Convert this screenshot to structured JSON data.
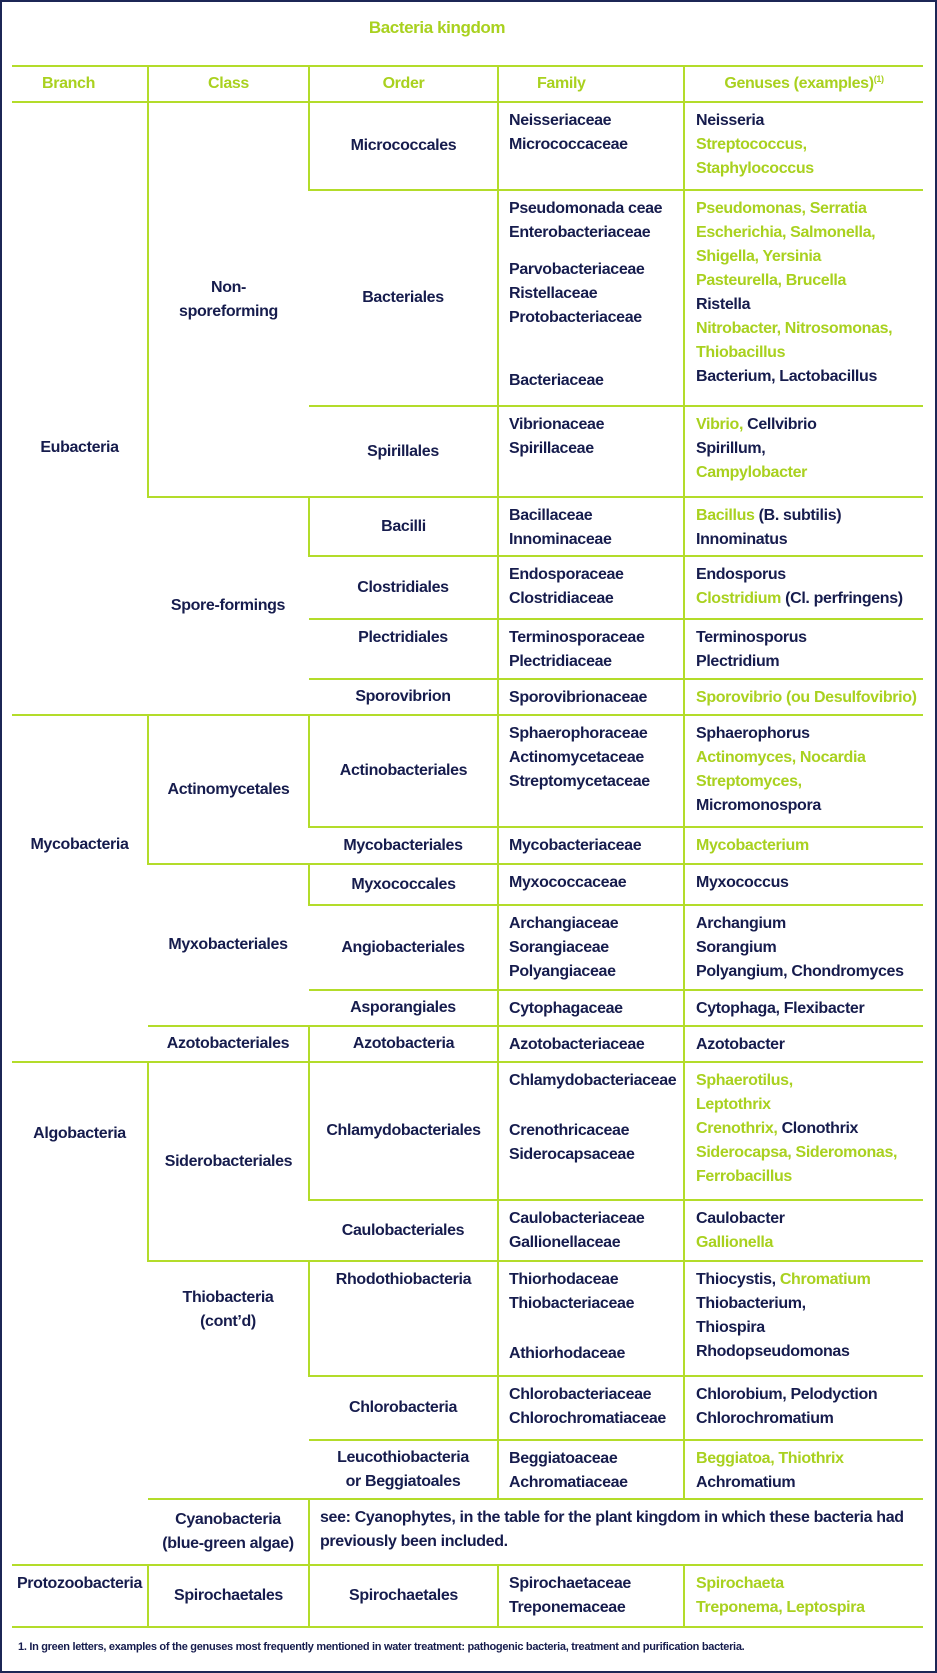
{
  "title": "Bacteria kingdom",
  "colors": {
    "text": "#161c4d",
    "green": "#a9d11f",
    "rule": "#b3dc2a",
    "frame": "#1c2656"
  },
  "headers": {
    "branch": "Branch",
    "class": "Class",
    "order": "Order",
    "family": "Family",
    "genus": "Genuses (examples)",
    "genus_sup": "(1)"
  },
  "branches": [
    {
      "label": "Eubacteria",
      "classes": [
        {
          "label": "Non-\nsporeforming",
          "orders": [
            {
              "order": "Micrococcales",
              "family": [
                "Neisseriaceae",
                "Micrococcaceae"
              ],
              "genus": [
                [
                  {
                    "text": "Neisseria",
                    "green": false
                  }
                ],
                [
                  {
                    "text": "Streptococcus,",
                    "green": true
                  }
                ],
                [
                  {
                    "text": "Staphylococcus",
                    "green": true
                  }
                ]
              ]
            },
            {
              "order": "Bacteriales",
              "family": [
                "Pseudomonada ceae",
                "Enterobacteriaceae",
                "",
                "Parvobacteriaceae",
                "Ristellaceae",
                "Protobacteriaceae",
                "",
                "",
                "",
                "Bacteriaceae"
              ],
              "genus": [
                [
                  {
                    "text": "Pseudomonas, Serratia",
                    "green": true
                  }
                ],
                [
                  {
                    "text": "Escherichia, Salmonella,",
                    "green": true
                  }
                ],
                [
                  {
                    "text": "Shigella, Yersinia",
                    "green": true
                  }
                ],
                [
                  {
                    "text": "Pasteurella, Brucella",
                    "green": true
                  }
                ],
                [
                  {
                    "text": "Ristella",
                    "green": false
                  }
                ],
                [
                  {
                    "text": "Nitrobacter, Nitrosomonas,",
                    "green": true
                  }
                ],
                [
                  {
                    "text": "Thiobacillus",
                    "green": true
                  }
                ],
                [
                  {
                    "text": "Bacterium, Lactobacillus",
                    "green": false
                  }
                ]
              ]
            },
            {
              "order": "Spirillales",
              "family": [
                "Vibrionaceae",
                "Spirillaceae"
              ],
              "genus": [
                [
                  {
                    "text": "Vibrio,",
                    "green": true
                  },
                  {
                    "text": " Cellvibrio",
                    "green": false
                  }
                ],
                [
                  {
                    "text": "Spirillum,",
                    "green": false
                  }
                ],
                [
                  {
                    "text": "Campylobacter",
                    "green": true
                  }
                ]
              ]
            }
          ]
        },
        {
          "label": "Spore-formings",
          "orders": [
            {
              "order": "Bacilli",
              "family": [
                "Bacillaceae",
                "Innominaceae"
              ],
              "genus": [
                [
                  {
                    "text": "Bacillus",
                    "green": true
                  },
                  {
                    "text": " (B. subtilis)",
                    "green": false
                  }
                ],
                [
                  {
                    "text": "Innominatus",
                    "green": false
                  }
                ]
              ]
            },
            {
              "order": "Clostridiales",
              "family": [
                "Endosporaceae",
                "Clostridiaceae"
              ],
              "genus": [
                [
                  {
                    "text": "Endosporus",
                    "green": false
                  }
                ],
                [
                  {
                    "text": "Clostridium",
                    "green": true
                  },
                  {
                    "text": " (Cl. perfringens)",
                    "green": false
                  }
                ]
              ]
            },
            {
              "order": "Plectridiales",
              "family": [
                "Terminosporaceae",
                "Plectridiaceae"
              ],
              "genus": [
                [
                  {
                    "text": "Terminosporus",
                    "green": false
                  }
                ],
                [
                  {
                    "text": "Plectridium",
                    "green": false
                  }
                ]
              ]
            },
            {
              "order": "Sporovibrion",
              "family": [
                "Sporovibrionaceae"
              ],
              "genus": [
                [
                  {
                    "text": "Sporovibrio (ou Desulfovibrio)",
                    "green": true
                  }
                ]
              ]
            }
          ]
        }
      ]
    },
    {
      "label": "Mycobacteria",
      "classes": [
        {
          "label": "Actinomycetales",
          "orders": [
            {
              "order": "Actinobacteriales",
              "family": [
                "Sphaerophoraceae",
                "Actinomycetaceae",
                "Streptomycetaceae"
              ],
              "genus": [
                [
                  {
                    "text": "Sphaerophorus",
                    "green": false
                  }
                ],
                [
                  {
                    "text": "Actinomyces, Nocardia",
                    "green": true
                  }
                ],
                [
                  {
                    "text": "Streptomyces,",
                    "green": true
                  }
                ],
                [
                  {
                    "text": "Micromonospora",
                    "green": false
                  }
                ]
              ]
            },
            {
              "order": "Mycobacteriales",
              "family": [
                "Mycobacteriaceae"
              ],
              "genus": [
                [
                  {
                    "text": "Mycobacterium",
                    "green": true
                  }
                ]
              ]
            }
          ]
        },
        {
          "label": "Myxobacteriales",
          "orders": [
            {
              "order": "Myxococcales",
              "family": [
                "Myxococcaceae"
              ],
              "genus": [
                [
                  {
                    "text": "Myxococcus",
                    "green": false
                  }
                ]
              ]
            },
            {
              "order": "Angiobacteriales",
              "family": [
                "Archangiaceae",
                "Sorangiaceae",
                "Polyangiaceae"
              ],
              "genus": [
                [
                  {
                    "text": "Archangium",
                    "green": false
                  }
                ],
                [
                  {
                    "text": "Sorangium",
                    "green": false
                  }
                ],
                [
                  {
                    "text": "Polyangium, Chondromyces",
                    "green": false
                  }
                ]
              ]
            },
            {
              "order": "Asporangiales",
              "family": [
                "Cytophagaceae"
              ],
              "genus": [
                [
                  {
                    "text": "Cytophaga, Flexibacter",
                    "green": false
                  }
                ]
              ]
            }
          ]
        },
        {
          "label": "Azotobacteriales",
          "orders": [
            {
              "order": "Azotobacteria",
              "family": [
                "Azotobacteriaceae"
              ],
              "genus": [
                [
                  {
                    "text": "Azotobacter",
                    "green": false
                  }
                ]
              ]
            }
          ]
        }
      ]
    },
    {
      "label": "Algobacteria",
      "classes": [
        {
          "label": "Siderobacteriales",
          "orders": [
            {
              "order": "Chlamydobacteriales",
              "family": [
                "Chlamydobacteriaceae",
                "",
                "",
                "Crenothricaceae",
                "Siderocapsaceae"
              ],
              "genus": [
                [
                  {
                    "text": "Sphaerotilus,",
                    "green": true
                  }
                ],
                [
                  {
                    "text": "Leptothrix",
                    "green": true
                  }
                ],
                [
                  {
                    "text": "Crenothrix,",
                    "green": true
                  },
                  {
                    "text": " Clonothrix",
                    "green": false
                  }
                ],
                [
                  {
                    "text": "Siderocapsa, Sideromonas,",
                    "green": true
                  }
                ],
                [
                  {
                    "text": "Ferrobacillus",
                    "green": true
                  }
                ]
              ]
            },
            {
              "order": "Caulobacteriales",
              "family": [
                "Caulobacteriaceae",
                "Gallionellaceae"
              ],
              "genus": [
                [
                  {
                    "text": "Caulobacter",
                    "green": false
                  }
                ],
                [
                  {
                    "text": "Gallionella",
                    "green": true
                  }
                ]
              ]
            }
          ]
        },
        {
          "label": "Thiobacteria\n(cont’d)",
          "orders": [
            {
              "order": "Rhodothiobacteria",
              "family": [
                "Thiorhodaceae",
                "Thiobacteriaceae",
                "",
                "",
                "Athiorhodaceae"
              ],
              "genus": [
                [
                  {
                    "text": "Thiocystis,",
                    "green": false
                  },
                  {
                    "text": " Chromatium",
                    "green": true
                  }
                ],
                [
                  {
                    "text": "Thiobacterium,",
                    "green": false
                  }
                ],
                [
                  {
                    "text": "Thiospira",
                    "green": false
                  }
                ],
                [
                  {
                    "text": "Rhodopseudomonas",
                    "green": false
                  }
                ]
              ]
            },
            {
              "order": "Chlorobacteria",
              "family": [
                "Chlorobacteriaceae",
                "Chlorochromatiaceae"
              ],
              "genus": [
                [
                  {
                    "text": "Chlorobium, Pelodyction",
                    "green": false
                  }
                ],
                [
                  {
                    "text": "Chlorochromatium",
                    "green": false
                  }
                ]
              ]
            },
            {
              "order": "Leucothiobacteria\n   or Beggiatoales",
              "family": [
                "Beggiatoaceae",
                "Achromatiaceae"
              ],
              "genus": [
                [
                  {
                    "text": "Beggiatoa, Thiothrix",
                    "green": true
                  }
                ],
                [
                  {
                    "text": "Achromatium",
                    "green": false
                  }
                ]
              ]
            }
          ]
        },
        {
          "label": "Cyanobacteria\n(blue-green algae)",
          "note": "see: Cyanophytes, in the table for the plant kingdom in which these bacteria had previously been included.",
          "orders": []
        }
      ]
    },
    {
      "label": "Protozoobacteria",
      "classes": [
        {
          "label": "Spirochaetales",
          "orders": [
            {
              "order": "Spirochaetales",
              "family": [
                "Spirochaetaceae",
                "Treponemaceae"
              ],
              "genus": [
                [
                  {
                    "text": "Spirochaeta",
                    "green": true
                  }
                ],
                [
                  {
                    "text": "Treponema, Leptospira",
                    "green": true
                  }
                ]
              ]
            }
          ]
        }
      ]
    }
  ],
  "footnote": "1. In green letters, examples of the genuses most frequently mentioned in water treatment: pathogenic bacteria, treatment and purification bacteria."
}
